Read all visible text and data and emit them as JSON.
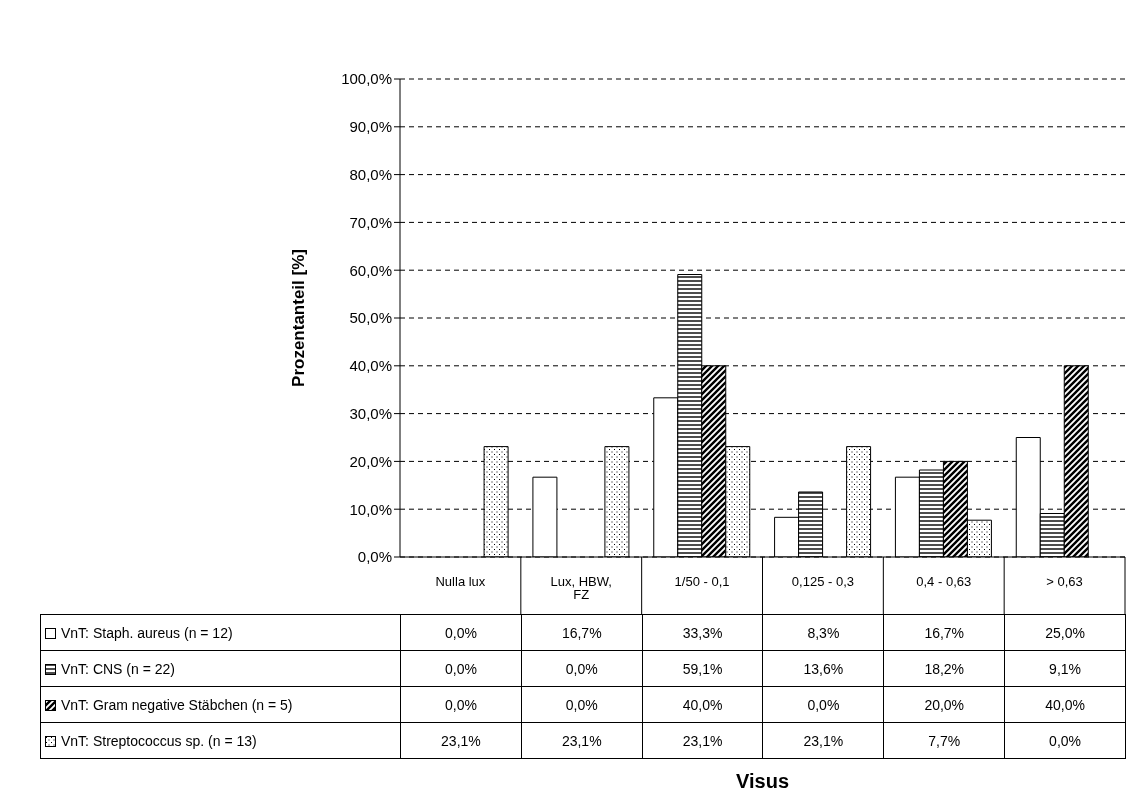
{
  "chart_data": {
    "type": "bar",
    "annotations": [
      "Visus"
    ],
    "ylabel": "Prozentanteil [%]",
    "categories": [
      "Nulla lux",
      "Lux, HBW, FZ",
      "1/50 - 0,1",
      "0,125 - 0,3",
      "0,4 - 0,63",
      "> 0,63"
    ],
    "series": [
      {
        "name": "VnT: Staph. aureus (n = 12)",
        "color": "#ffffff",
        "values": [
          0.0,
          16.7,
          33.3,
          8.3,
          16.7,
          25.0
        ],
        "value_labels": [
          "0,0%",
          "16,7%",
          "33,3%",
          "8,3%",
          "16,7%",
          "25,0%"
        ]
      },
      {
        "name": "VnT: CNS (n = 22)",
        "color": "#000000",
        "values": [
          0.0,
          0.0,
          59.1,
          13.6,
          18.2,
          9.1
        ],
        "value_labels": [
          "0,0%",
          "0,0%",
          "59,1%",
          "13,6%",
          "18,2%",
          "9,1%"
        ]
      },
      {
        "name": "VnT: Gram negative Stäbchen (n = 5)",
        "color": "#000000",
        "values": [
          0.0,
          0.0,
          40.0,
          0.0,
          20.0,
          40.0
        ],
        "value_labels": [
          "0,0%",
          "0,0%",
          "40,0%",
          "0,0%",
          "20,0%",
          "40,0%"
        ]
      },
      {
        "name": "VnT: Streptococcus sp. (n = 13)",
        "color": "#000000",
        "values": [
          23.1,
          23.1,
          23.1,
          23.1,
          7.7,
          0.0
        ],
        "value_labels": [
          "23,1%",
          "23,1%",
          "23,1%",
          "23,1%",
          "7,7%",
          "0,0%"
        ]
      }
    ],
    "ylim": [
      0,
      100
    ],
    "yticks": [
      {
        "value": 0,
        "label": "0,0%"
      },
      {
        "value": 10,
        "label": "10,0%"
      },
      {
        "value": 20,
        "label": "20,0%"
      },
      {
        "value": 30,
        "label": "30,0%"
      },
      {
        "value": 40,
        "label": "40,0%"
      },
      {
        "value": 50,
        "label": "50,0%"
      },
      {
        "value": 60,
        "label": "60,0%"
      },
      {
        "value": 70,
        "label": "70,0%"
      },
      {
        "value": 80,
        "label": "80,0%"
      },
      {
        "value": 90,
        "label": "90,0%"
      },
      {
        "value": 100,
        "label": "100,0%"
      }
    ],
    "grid": "y",
    "legend": "bottom"
  }
}
